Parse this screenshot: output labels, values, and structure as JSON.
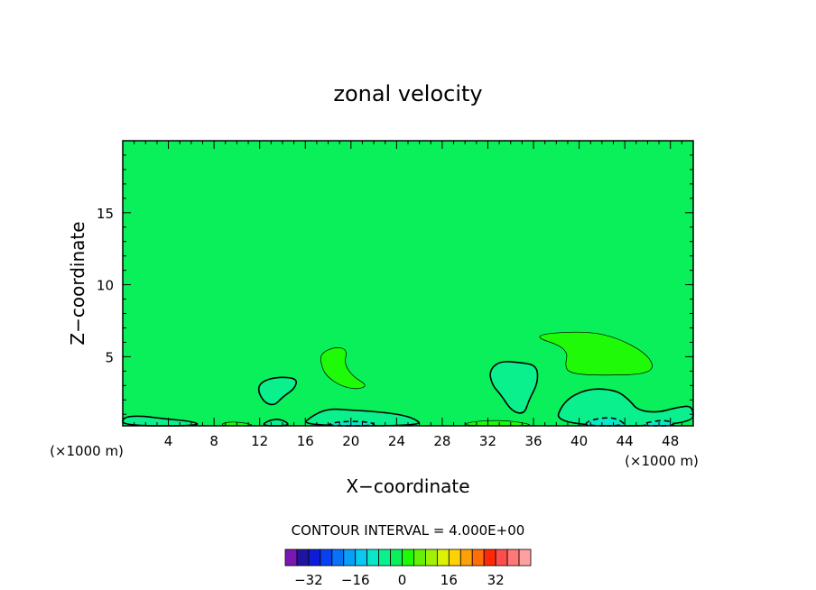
{
  "chart_data": {
    "type": "heatmap",
    "title": "zonal velocity",
    "xlabel": "X−coordinate",
    "ylabel": "Z−coordinate",
    "x_unit_left": "(×1000 m)",
    "x_unit_right": "(×1000 m)",
    "xlim": [
      0,
      50
    ],
    "ylim": [
      0.2,
      20
    ],
    "x_ticks": [
      4,
      8,
      12,
      16,
      20,
      24,
      28,
      32,
      36,
      40,
      44,
      48
    ],
    "x_tick_labels": [
      "4",
      "8",
      "12",
      "16",
      "20",
      "24",
      "28",
      "32",
      "36",
      "40",
      "44",
      "48"
    ],
    "y_ticks": [
      5,
      10,
      15
    ],
    "y_tick_labels": [
      "5",
      "10",
      "15"
    ],
    "background_value": 0,
    "regions": [
      {
        "value": 4,
        "points": [
          [
            35.5,
            6.5
          ],
          [
            40.5,
            6.8
          ],
          [
            43.5,
            6.3
          ],
          [
            46.3,
            5.0
          ],
          [
            46.5,
            3.8
          ],
          [
            42.0,
            3.7
          ],
          [
            39.5,
            3.8
          ],
          [
            38.7,
            4.2
          ],
          [
            39.1,
            5.6
          ]
        ]
      },
      {
        "value": 4,
        "points": [
          [
            17.3,
            5.2
          ],
          [
            18.6,
            5.7
          ],
          [
            19.7,
            5.5
          ],
          [
            19.4,
            4.5
          ],
          [
            20.2,
            3.6
          ],
          [
            21.5,
            3.0
          ],
          [
            20.5,
            2.7
          ],
          [
            19.0,
            3.0
          ],
          [
            17.8,
            3.7
          ],
          [
            17.4,
            4.4
          ]
        ]
      },
      {
        "value": -4,
        "points": [
          [
            11.8,
            2.7
          ],
          [
            12.2,
            3.3
          ],
          [
            13.6,
            3.6
          ],
          [
            15.3,
            3.5
          ],
          [
            15.1,
            2.8
          ],
          [
            14.0,
            2.2
          ],
          [
            13.3,
            1.6
          ],
          [
            12.4,
            1.8
          ]
        ]
      },
      {
        "value": -4,
        "points": [
          [
            32.1,
            4.0
          ],
          [
            33.0,
            4.7
          ],
          [
            34.8,
            4.6
          ],
          [
            36.3,
            4.4
          ],
          [
            36.4,
            3.2
          ],
          [
            35.6,
            2.0
          ],
          [
            35.2,
            1.0
          ],
          [
            34.1,
            1.2
          ],
          [
            33.1,
            2.4
          ],
          [
            32.4,
            3.0
          ]
        ]
      },
      {
        "value": -4,
        "points": [
          [
            37.8,
            0.2
          ],
          [
            38.6,
            1.9
          ],
          [
            40.7,
            2.8
          ],
          [
            43.2,
            2.7
          ],
          [
            44.4,
            2.0
          ],
          [
            45.1,
            1.3
          ],
          [
            46.8,
            1.1
          ],
          [
            48.7,
            1.5
          ],
          [
            50.0,
            1.6
          ],
          [
            50.0,
            0.2
          ]
        ]
      },
      {
        "value": -4,
        "points": [
          [
            15.6,
            0.2
          ],
          [
            16.6,
            0.9
          ],
          [
            18.0,
            1.4
          ],
          [
            19.8,
            1.3
          ],
          [
            22.0,
            1.2
          ],
          [
            24.2,
            1.0
          ],
          [
            25.6,
            0.7
          ],
          [
            26.3,
            0.2
          ]
        ]
      },
      {
        "value": -4,
        "points": [
          [
            0.0,
            0.2
          ],
          [
            0.0,
            0.8
          ],
          [
            1.5,
            0.9
          ],
          [
            3.5,
            0.7
          ],
          [
            6.2,
            0.5
          ],
          [
            6.8,
            0.2
          ]
        ]
      },
      {
        "value": -4,
        "points": [
          [
            12.2,
            0.2
          ],
          [
            12.6,
            0.5
          ],
          [
            13.5,
            0.7
          ],
          [
            14.3,
            0.5
          ],
          [
            14.6,
            0.2
          ]
        ]
      },
      {
        "value": 4,
        "points": [
          [
            8.4,
            0.2
          ],
          [
            9.2,
            0.5
          ],
          [
            10.8,
            0.4
          ],
          [
            11.6,
            0.2
          ]
        ]
      },
      {
        "value": 4,
        "points": [
          [
            29.7,
            0.2
          ],
          [
            30.5,
            0.5
          ],
          [
            33.2,
            0.6
          ],
          [
            35.2,
            0.4
          ],
          [
            36.0,
            0.2
          ]
        ]
      },
      {
        "value": -8,
        "points": [
          [
            40.4,
            0.2
          ],
          [
            40.9,
            0.6
          ],
          [
            42.6,
            0.8
          ],
          [
            43.6,
            0.6
          ],
          [
            44.1,
            0.2
          ]
        ]
      },
      {
        "value": -8,
        "points": [
          [
            45.3,
            0.2
          ],
          [
            46.2,
            0.5
          ],
          [
            47.8,
            0.6
          ],
          [
            48.6,
            0.2
          ]
        ]
      },
      {
        "value": -8,
        "points": [
          [
            17.7,
            0.2
          ],
          [
            18.8,
            0.5
          ],
          [
            21.5,
            0.5
          ],
          [
            22.4,
            0.2
          ]
        ]
      }
    ],
    "colorbar": {
      "label": "CONTOUR INTERVAL = 4.000E+00",
      "tick_labels": [
        "−32",
        "−16",
        "0",
        "16",
        "32"
      ],
      "tick_values": [
        -32,
        -16,
        0,
        16,
        32
      ],
      "levels": [
        -36,
        -32,
        -28,
        -24,
        -20,
        -16,
        -12,
        -8,
        -4,
        0,
        4,
        8,
        12,
        16,
        20,
        24,
        28,
        32,
        36
      ],
      "colors": [
        "#7a16b4",
        "#1e14a0",
        "#0e1cd8",
        "#0a40f0",
        "#0a72f6",
        "#0a9ef6",
        "#0ac8f0",
        "#0ae6c8",
        "#0af08c",
        "#0af05a",
        "#1efa08",
        "#64f008",
        "#a0f008",
        "#dcf008",
        "#ffd208",
        "#ffa008",
        "#ff6e08",
        "#ff2808",
        "#ff4c4c",
        "#ff7878",
        "#ffa0a0"
      ]
    }
  }
}
